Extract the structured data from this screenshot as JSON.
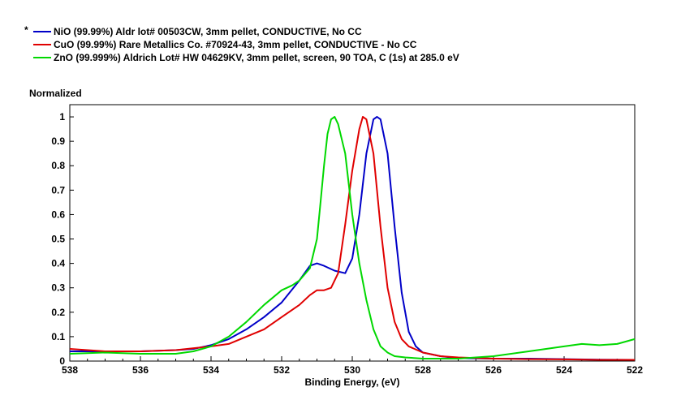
{
  "legend": {
    "marker": "*",
    "items": [
      {
        "label": "NiO (99.99%) Aldr lot# 00503CW, 3mm pellet, CONDUCTIVE, No CC",
        "color": "#0000c8"
      },
      {
        "label": "CuO (99.99%) Rare Metallics Co. #70924-43, 3mm pellet, CONDUCTIVE - No CC",
        "color": "#e00000"
      },
      {
        "label": "ZnO (99.999%) Aldrich Lot# HW 04629KV, 3mm pellet, screen, 90 TOA, C (1s) at 285.0 eV",
        "color": "#00d800"
      }
    ]
  },
  "chart_data": {
    "type": "line",
    "ylabel": "Normalized",
    "xlabel": "Binding Energy, (eV)",
    "xlim": [
      538,
      522
    ],
    "ylim": [
      0,
      1.05
    ],
    "x_reversed": true,
    "xticks": [
      "538",
      "536",
      "534",
      "532",
      "530",
      "528",
      "526",
      "524",
      "522"
    ],
    "yticks": [
      "0",
      "0.1",
      "0.2",
      "0.3",
      "0.4",
      "0.5",
      "0.6",
      "0.7",
      "0.8",
      "0.9",
      "1"
    ],
    "series": [
      {
        "name": "NiO (99.99%) Aldr lot# 00503CW, 3mm pellet, CONDUCTIVE, No CC",
        "color": "#0000c8",
        "x": [
          538,
          537,
          536,
          535,
          534.5,
          534,
          533.5,
          533,
          532.5,
          532,
          531.5,
          531.2,
          531,
          530.8,
          530.5,
          530.2,
          530,
          529.8,
          529.6,
          529.4,
          529.3,
          529.2,
          529,
          528.8,
          528.6,
          528.4,
          528.2,
          528,
          527.5,
          527,
          526,
          525,
          524,
          523,
          522
        ],
        "y": [
          0.04,
          0.04,
          0.04,
          0.045,
          0.05,
          0.065,
          0.09,
          0.13,
          0.18,
          0.24,
          0.33,
          0.39,
          0.4,
          0.39,
          0.37,
          0.36,
          0.42,
          0.6,
          0.85,
          0.99,
          1.0,
          0.99,
          0.85,
          0.55,
          0.28,
          0.12,
          0.06,
          0.035,
          0.02,
          0.012,
          0.01,
          0.01,
          0.008,
          0.006,
          0.005
        ]
      },
      {
        "name": "CuO (99.99%) Rare Metallics Co. #70924-43, 3mm pellet, CONDUCTIVE - No CC",
        "color": "#e00000",
        "x": [
          538,
          537,
          536,
          535,
          534,
          533.5,
          533,
          532.5,
          532,
          531.5,
          531.2,
          531,
          530.8,
          530.6,
          530.4,
          530.2,
          530,
          529.8,
          529.7,
          529.6,
          529.4,
          529.2,
          529,
          528.8,
          528.6,
          528.4,
          528,
          527.5,
          527,
          526,
          525,
          524,
          523,
          522
        ],
        "y": [
          0.05,
          0.04,
          0.04,
          0.045,
          0.06,
          0.07,
          0.1,
          0.13,
          0.18,
          0.23,
          0.27,
          0.29,
          0.29,
          0.3,
          0.36,
          0.56,
          0.78,
          0.95,
          1.0,
          0.99,
          0.85,
          0.55,
          0.3,
          0.16,
          0.09,
          0.06,
          0.035,
          0.02,
          0.015,
          0.01,
          0.008,
          0.007,
          0.005,
          0.005
        ]
      },
      {
        "name": "ZnO (99.999%) Aldrich Lot# HW 04629KV, 3mm pellet, screen, 90 TOA, C (1s) at 285.0 eV",
        "color": "#00d800",
        "x": [
          538,
          537,
          536,
          535,
          534.5,
          534,
          533.5,
          533,
          532.5,
          532,
          531.7,
          531.5,
          531.2,
          531,
          530.9,
          530.8,
          530.7,
          530.6,
          530.5,
          530.4,
          530.2,
          530,
          529.8,
          529.6,
          529.4,
          529.2,
          529,
          528.8,
          528.5,
          528,
          527,
          526,
          525,
          524,
          523.5,
          523,
          522.5,
          522
        ],
        "y": [
          0.03,
          0.035,
          0.03,
          0.03,
          0.04,
          0.06,
          0.1,
          0.16,
          0.23,
          0.29,
          0.31,
          0.33,
          0.38,
          0.5,
          0.65,
          0.8,
          0.93,
          0.99,
          1.0,
          0.97,
          0.85,
          0.6,
          0.4,
          0.25,
          0.13,
          0.06,
          0.035,
          0.02,
          0.015,
          0.01,
          0.01,
          0.02,
          0.04,
          0.06,
          0.07,
          0.065,
          0.07,
          0.09
        ]
      }
    ]
  }
}
